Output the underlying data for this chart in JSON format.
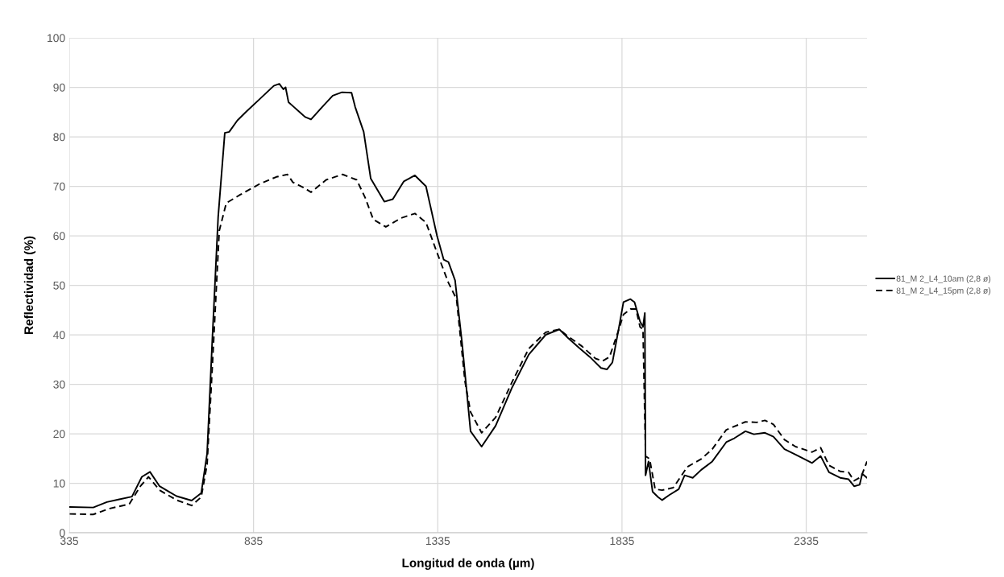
{
  "chart_data": {
    "type": "line",
    "xlabel": "Longitud de onda (µm)",
    "ylabel": "Reflectividad (%)",
    "xlim": [
      335,
      2500
    ],
    "xticks": [
      335,
      835,
      1335,
      1835,
      2335
    ],
    "ylim": [
      0,
      100
    ],
    "yticks": [
      0,
      10,
      20,
      30,
      40,
      50,
      60,
      70,
      80,
      90,
      100
    ],
    "grid": true,
    "legend": "right",
    "marker": "none",
    "series": [
      {
        "name": "81_M 2_L4_10am (2,8 ø)",
        "color": "#000000",
        "line_style": "solid",
        "x": [
          336,
          400,
          437,
          468,
          505,
          532,
          554,
          580,
          603,
          626,
          667,
          693,
          709,
          723,
          739,
          757,
          769,
          791,
          817,
          850,
          890,
          905,
          916,
          922,
          930,
          945,
          960,
          975,
          991,
          1021,
          1050,
          1075,
          1101,
          1111,
          1134,
          1153,
          1190,
          1213,
          1243,
          1273,
          1303,
          1333,
          1351,
          1364,
          1382,
          1401,
          1424,
          1454,
          1492,
          1537,
          1582,
          1628,
          1665,
          1688,
          1718,
          1748,
          1778,
          1794,
          1809,
          1827,
          1839,
          1858,
          1869,
          1884,
          1892,
          1897,
          1899,
          1907,
          1918,
          1933,
          1944,
          1963,
          1989,
          2005,
          2027,
          2050,
          2080,
          2118,
          2140,
          2170,
          2193,
          2223,
          2246,
          2276,
          2306,
          2351,
          2374,
          2397,
          2427,
          2450,
          2465,
          2480,
          2487,
          2500
        ],
        "values": [
          5.2,
          5.1,
          6.2,
          6.7,
          7.3,
          11.3,
          12.3,
          9.4,
          8.4,
          7.4,
          6.5,
          8.0,
          16,
          38.8,
          63.8,
          80.8,
          81,
          83.3,
          85.2,
          87.5,
          90.3,
          90.7,
          89.6,
          90,
          87,
          86,
          85,
          84,
          83.5,
          86,
          88.3,
          89,
          88.9,
          86,
          81,
          71.6,
          66.9,
          67.4,
          71,
          72.2,
          70,
          60,
          55.2,
          54.7,
          51,
          38.3,
          20.5,
          17.4,
          21.6,
          29.4,
          36,
          40,
          41.1,
          39.4,
          37.4,
          35.5,
          33.3,
          33,
          34.4,
          41.6,
          46.6,
          47.2,
          46.6,
          42.7,
          41.6,
          44.4,
          11.6,
          14.4,
          8.3,
          7.2,
          6.6,
          7.6,
          8.8,
          11.6,
          11.1,
          12.7,
          14.4,
          18.3,
          19.1,
          20.5,
          19.9,
          20.2,
          19.4,
          16.9,
          15.8,
          14.1,
          15.5,
          12.2,
          11.1,
          10.8,
          9.4,
          9.7,
          11.9,
          11.1
        ]
      },
      {
        "name": "81_M 2_L4_15pm (2,8 ø)",
        "color": "#000000",
        "line_style": "dashed",
        "x": [
          336,
          400,
          445,
          498,
          528,
          550,
          580,
          626,
          667,
          693,
          709,
          723,
          742,
          761,
          799,
          852,
          897,
          927,
          942,
          972,
          991,
          1032,
          1077,
          1115,
          1138,
          1160,
          1194,
          1236,
          1273,
          1303,
          1333,
          1364,
          1386,
          1409,
          1424,
          1454,
          1492,
          1537,
          1582,
          1628,
          1665,
          1688,
          1726,
          1763,
          1782,
          1801,
          1824,
          1839,
          1858,
          1873,
          1884,
          1892,
          1899,
          1910,
          1925,
          1944,
          1974,
          1997,
          2012,
          2050,
          2080,
          2118,
          2170,
          2201,
          2223,
          2246,
          2276,
          2306,
          2351,
          2374,
          2397,
          2427,
          2450,
          2465,
          2484,
          2500
        ],
        "values": [
          3.8,
          3.7,
          4.9,
          5.8,
          9.4,
          11.3,
          8.6,
          6.6,
          5.5,
          7.2,
          13.8,
          33.3,
          61,
          66.6,
          68.3,
          70.5,
          71.9,
          72.4,
          70.8,
          69.7,
          68.8,
          71.3,
          72.4,
          71.3,
          67.7,
          63.3,
          61.8,
          63.6,
          64.5,
          62.7,
          56.6,
          50.5,
          47.2,
          30.5,
          24.4,
          20.2,
          23.3,
          30.5,
          37.2,
          40.5,
          41.1,
          39.7,
          37.7,
          35.2,
          34.7,
          35.5,
          40.5,
          44.1,
          45.2,
          45.2,
          41.6,
          41.1,
          15.5,
          14.9,
          8.8,
          8.6,
          9.1,
          11.6,
          13.3,
          14.9,
          16.9,
          20.8,
          22.4,
          22.3,
          22.7,
          21.9,
          18.8,
          17.4,
          16.3,
          17.2,
          13.6,
          12.4,
          12.2,
          10.5,
          11.3,
          14.4
        ]
      }
    ]
  }
}
